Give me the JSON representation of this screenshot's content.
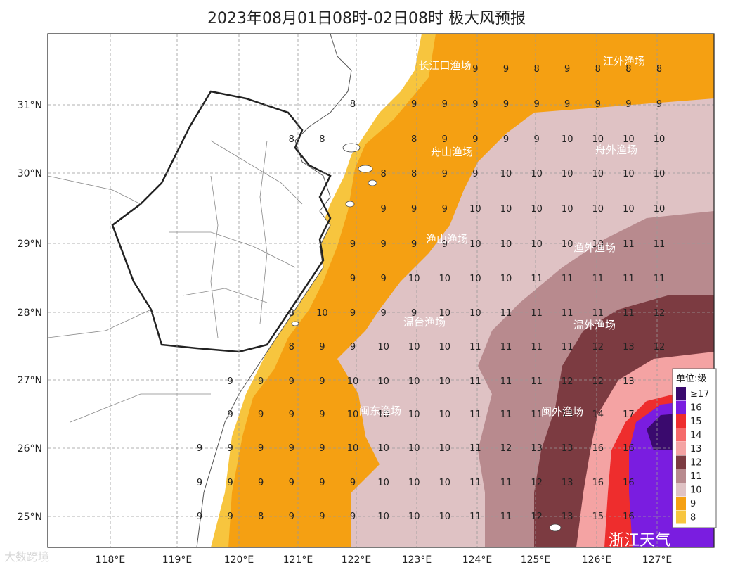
{
  "title": "2023年08月01日08时-02日08时 极大风预报",
  "lat_labels": [
    "31°N",
    "30°N",
    "29°N",
    "28°N",
    "27°N",
    "26°N",
    "25°N"
  ],
  "lon_labels": [
    "118°E",
    "119°E",
    "120°E",
    "121°E",
    "122°E",
    "123°E",
    "124°E",
    "125°E",
    "126°E",
    "127°E"
  ],
  "fishery_zones": [
    "长江口渔场",
    "江外渔场",
    "舟山渔场",
    "舟外渔场",
    "渔山渔场",
    "渔外渔场",
    "温台渔场",
    "温外渔场",
    "闽东渔场",
    "闽外渔场"
  ],
  "legend": {
    "title": "单位:级",
    "levels": [
      {
        "label": "≥17",
        "color": "#3a0a6e"
      },
      {
        "label": "16",
        "color": "#7a1de0"
      },
      {
        "label": "15",
        "color": "#ee2d2d"
      },
      {
        "label": "14",
        "color": "#f56a6a"
      },
      {
        "label": "13",
        "color": "#f4a3a3"
      },
      {
        "label": "12",
        "color": "#7c3b41"
      },
      {
        "label": "11",
        "color": "#b88a8e"
      },
      {
        "label": "10",
        "color": "#dfc2c4"
      },
      {
        "label": "9",
        "color": "#f5a012"
      },
      {
        "label": "8",
        "color": "#f7c53e"
      }
    ]
  },
  "grid_values": [
    {
      "row": "31.5",
      "values": [
        "",
        "",
        "",
        "",
        "",
        "",
        "",
        "",
        "",
        "",
        "",
        "",
        "",
        "",
        "9",
        "9",
        "8",
        "9",
        "8",
        "8",
        "8"
      ]
    },
    {
      "row": "31",
      "values": [
        "",
        "",
        "",
        "",
        "",
        "",
        "",
        "",
        "",
        "",
        "8",
        "",
        "9",
        "9",
        "9",
        "9",
        "9",
        "9",
        "9",
        "9",
        "9"
      ]
    },
    {
      "row": "30.5",
      "values": [
        "",
        "",
        "",
        "",
        "",
        "",
        "",
        "",
        "8",
        "8",
        "",
        "",
        "8",
        "9",
        "9",
        "9",
        "9",
        "10",
        "10",
        "10",
        "10"
      ]
    },
    {
      "row": "30",
      "values": [
        "",
        "",
        "",
        "",
        "",
        "",
        "",
        "",
        "",
        "",
        "",
        "8",
        "8",
        "9",
        "9",
        "10",
        "10",
        "10",
        "10",
        "10",
        "10"
      ]
    },
    {
      "row": "29.5",
      "values": [
        "",
        "",
        "",
        "",
        "",
        "",
        "",
        "",
        "",
        "",
        "",
        "9",
        "9",
        "9",
        "10",
        "10",
        "10",
        "10",
        "10",
        "10",
        "10"
      ]
    },
    {
      "row": "29",
      "values": [
        "",
        "",
        "",
        "",
        "",
        "",
        "",
        "",
        "",
        "",
        "9",
        "9",
        "9",
        "9",
        "10",
        "10",
        "10",
        "10",
        "10",
        "11",
        "11"
      ]
    },
    {
      "row": "28.5",
      "values": [
        "",
        "",
        "",
        "",
        "",
        "",
        "",
        "",
        "",
        "",
        "9",
        "9",
        "10",
        "10",
        "10",
        "10",
        "11",
        "11",
        "11",
        "11",
        "11"
      ]
    },
    {
      "row": "28",
      "values": [
        "",
        "",
        "",
        "",
        "",
        "",
        "",
        "",
        "8",
        "10",
        "9",
        "9",
        "9",
        "10",
        "10",
        "11",
        "11",
        "11",
        "11",
        "11",
        "12"
      ]
    },
    {
      "row": "27.5",
      "values": [
        "",
        "",
        "",
        "",
        "",
        "",
        "",
        "",
        "8",
        "9",
        "9",
        "10",
        "10",
        "10",
        "11",
        "11",
        "11",
        "11",
        "12",
        "13",
        "12"
      ]
    },
    {
      "row": "27",
      "values": [
        "",
        "",
        "",
        "",
        "",
        "",
        "9",
        "9",
        "9",
        "9",
        "10",
        "10",
        "10",
        "10",
        "11",
        "11",
        "11",
        "12",
        "12",
        "13",
        ""
      ]
    },
    {
      "row": "26.5",
      "values": [
        "",
        "",
        "",
        "",
        "",
        "",
        "9",
        "9",
        "9",
        "9",
        "10",
        "10",
        "10",
        "10",
        "11",
        "11",
        "11",
        "13",
        "14",
        "17",
        ""
      ]
    },
    {
      "row": "26",
      "values": [
        "",
        "",
        "",
        "",
        "",
        "9",
        "9",
        "9",
        "9",
        "9",
        "10",
        "10",
        "10",
        "10",
        "11",
        "12",
        "13",
        "13",
        "16",
        "16",
        ""
      ]
    },
    {
      "row": "25.5",
      "values": [
        "",
        "",
        "",
        "",
        "",
        "9",
        "9",
        "9",
        "9",
        "9",
        "9",
        "10",
        "10",
        "10",
        "11",
        "11",
        "12",
        "13",
        "16",
        "16",
        ""
      ]
    },
    {
      "row": "25",
      "values": [
        "",
        "",
        "",
        "",
        "",
        "9",
        "9",
        "8",
        "9",
        "9",
        "9",
        "10",
        "10",
        "10",
        "11",
        "11",
        "12",
        "13",
        "15",
        "16",
        ""
      ]
    }
  ],
  "watermarks": {
    "left": "大数跨境",
    "right": "浙江天气"
  }
}
